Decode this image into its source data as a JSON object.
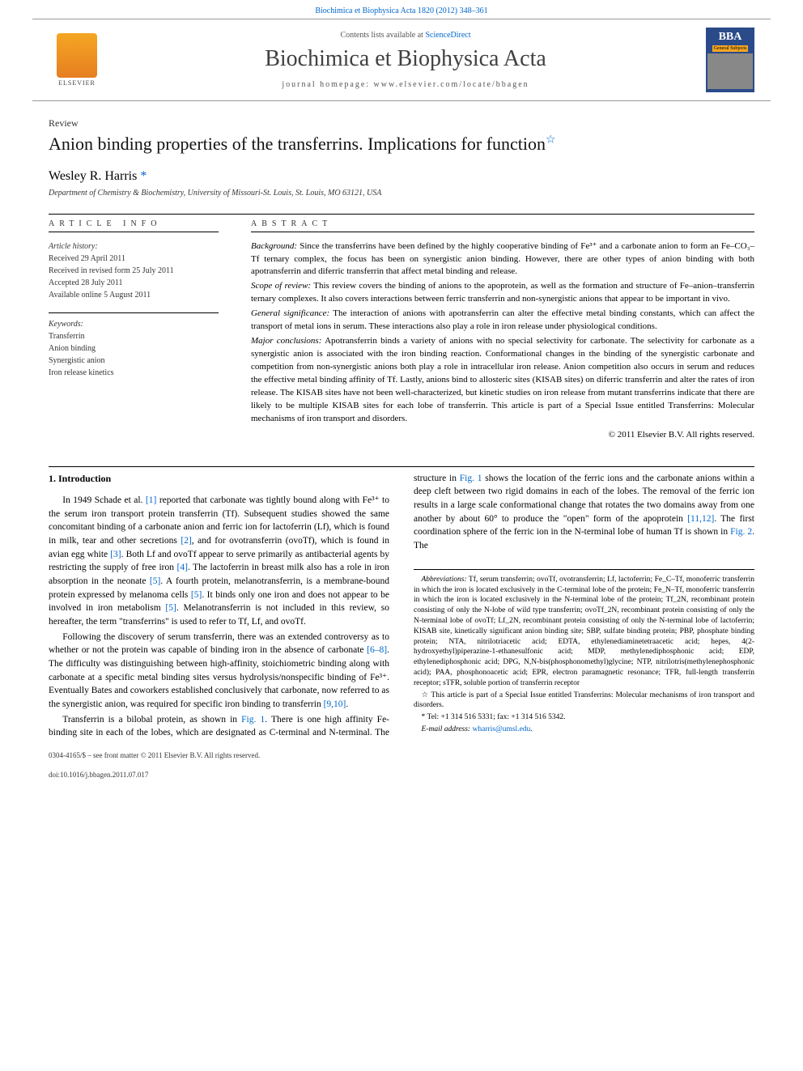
{
  "header": {
    "citation_prefix": "Biochimica et Biophysica Acta 1820 (2012) 348–361",
    "contents_label": "Contents lists available at",
    "contents_link": "ScienceDirect",
    "journal_name": "Biochimica et Biophysica Acta",
    "homepage_label": "journal homepage: www.elsevier.com/locate/bbagen",
    "elsevier_label": "ELSEVIER",
    "cover_title": "BBA",
    "cover_sub": "General Subjects"
  },
  "article": {
    "type": "Review",
    "title": "Anion binding properties of the transferrins. Implications for function",
    "title_star": "☆",
    "author": "Wesley R. Harris",
    "author_mark": "*",
    "affiliation": "Department of Chemistry & Biochemistry, University of Missouri-St. Louis, St. Louis, MO 63121, USA"
  },
  "info": {
    "header": "ARTICLE INFO",
    "history_title": "Article history:",
    "history_lines": [
      "Received 29 April 2011",
      "Received in revised form 25 July 2011",
      "Accepted 28 July 2011",
      "Available online 5 August 2011"
    ],
    "keywords_title": "Keywords:",
    "keywords": [
      "Transferrin",
      "Anion binding",
      "Synergistic anion",
      "Iron release kinetics"
    ]
  },
  "abstract": {
    "header": "ABSTRACT",
    "paragraphs": [
      {
        "label": "Background:",
        "text": "Since the transferrins have been defined by the highly cooperative binding of Fe³⁺ and a carbonate anion to form an Fe–CO₃–Tf ternary complex, the focus has been on synergistic anion binding. However, there are other types of anion binding with both apotransferrin and diferric transferrin that affect metal binding and release."
      },
      {
        "label": "Scope of review:",
        "text": "This review covers the binding of anions to the apoprotein, as well as the formation and structure of Fe–anion–transferrin ternary complexes. It also covers interactions between ferric transferrin and non-synergistic anions that appear to be important in vivo."
      },
      {
        "label": "General significance:",
        "text": "The interaction of anions with apotransferrin can alter the effective metal binding constants, which can affect the transport of metal ions in serum. These interactions also play a role in iron release under physiological conditions."
      },
      {
        "label": "Major conclusions:",
        "text": "Apotransferrin binds a variety of anions with no special selectivity for carbonate. The selectivity for carbonate as a synergistic anion is associated with the iron binding reaction. Conformational changes in the binding of the synergistic carbonate and competition from non-synergistic anions both play a role in intracellular iron release. Anion competition also occurs in serum and reduces the effective metal binding affinity of Tf. Lastly, anions bind to allosteric sites (KISAB sites) on diferric transferrin and alter the rates of iron release. The KISAB sites have not been well-characterized, but kinetic studies on iron release from mutant transferrins indicate that there are likely to be multiple KISAB sites for each lobe of transferrin. This article is part of a Special Issue entitled Transferrins: Molecular mechanisms of iron transport and disorders."
      }
    ],
    "copyright": "© 2011 Elsevier B.V. All rights reserved."
  },
  "body": {
    "section_number": "1.",
    "section_title": "Introduction",
    "p1_a": "In 1949 Schade et al. ",
    "p1_ref1": "[1]",
    "p1_b": " reported that carbonate was tightly bound along with Fe³⁺ to the serum iron transport protein transferrin (Tf). Subsequent studies showed the same concomitant binding of a carbonate anion and ferric ion for lactoferrin (Lf), which is found in milk, tear and other secretions ",
    "p1_ref2": "[2]",
    "p1_c": ", and for ovotransferrin (ovoTf), which is found in avian egg white ",
    "p1_ref3": "[3]",
    "p1_d": ". Both Lf and ovoTf appear to serve primarily as antibacterial agents by restricting the supply of free iron ",
    "p1_ref4": "[4]",
    "p1_e": ". The lactoferrin in breast milk also has a role in iron absorption in the neonate ",
    "p1_ref5": "[5]",
    "p1_f": ". A fourth protein, melanotransferrin, is a membrane-bound protein expressed by melanoma cells ",
    "p1_ref5b": "[5]",
    "p1_g": ". It binds only one iron and does not appear to be involved in iron metabolism ",
    "p1_ref5c": "[5]",
    "p1_h": ". Melanotransferrin is not included in this review, so hereafter, the term \"transferrins\" is used to refer to Tf, Lf, and ovoTf.",
    "p2_a": "Following the discovery of serum transferrin, there was an extended controversy as to whether or not the protein was capable of binding iron in the absence of carbonate ",
    "p2_ref68": "[6–8]",
    "p2_b": ". The difficulty was distinguishing between high-affinity, stoichiometric binding along with carbonate at a specific metal binding sites versus hydrolysis/nonspecific binding of Fe³⁺. Eventually Bates and coworkers established conclusively that carbonate, now referred to as the synergistic anion, was required for specific iron binding to transferrin ",
    "p2_ref910": "[9,10]",
    "p2_c": ".",
    "p3_a": "Transferrin is a bilobal protein, as shown in ",
    "p3_fig1": "Fig. 1",
    "p3_b": ". There is one high affinity Fe-binding site in each of the lobes, which are designated as C-terminal and N-terminal. The structure in ",
    "p3_fig1b": "Fig. 1",
    "p3_c": " shows the location of the ferric ions and the carbonate anions within a deep cleft between two rigid domains in each of the lobes. The removal of the ferric ion results in a large scale conformational change that rotates the two domains away from one another by about 60° to produce the \"open\" form of the apoprotein ",
    "p3_ref1112": "[11,12]",
    "p3_d": ". The first coordination sphere of the ferric ion in the N-terminal lobe of human Tf is shown in ",
    "p3_fig2": "Fig. 2",
    "p3_e": ". The"
  },
  "footnotes": {
    "abbrev_label": "Abbreviations:",
    "abbrev_text": " Tf, serum transferrin; ovoTf, ovotransferrin; Lf, lactoferrin; Fe_C–Tf, monoferric transferrin in which the iron is located exclusively in the C-terminal lobe of the protein; Fe_N–Tf, monoferric transferrin in which the iron is located exclusively in the N-terminal lobe of the protein; Tf_2N, recombinant protein consisting of only the N-lobe of wild type transferrin; ovoTf_2N, recombinant protein consisting of only the N-terminal lobe of ovoTf; Lf_2N, recombinant protein consisting of only the N-terminal lobe of lactoferrin; KISAB site, kinetically significant anion binding site; SBP, sulfate binding protein; PBP, phosphate binding protein; NTA, nitrilotriacetic acid; EDTA, ethylenediaminetetraacetic acid; hepes, 4(2-hydroxyethyl)piperazine-1-ethanesulfonic acid; MDP, methylenediphosphonic acid; EDP, ethylenediphosphonic acid; DPG, N,N-bis(phosphonomethyl)glycine; NTP, nitrilotris(methylenephosphonic acid); PAA, phosphonoacetic acid; EPR, electron paramagnetic resonance; TFR, full-length transferrin receptor; sTFR, soluble portion of transferrin receptor",
    "star_note": "☆ This article is part of a Special Issue entitled Transferrins: Molecular mechanisms of iron transport and disorders.",
    "corr_label": "* Tel: +1 314 516 5331; fax: +1 314 516 5342.",
    "email_label": "E-mail address:",
    "email": "wharris@umsl.edu"
  },
  "footer": {
    "line1": "0304-4165/$ – see front matter © 2011 Elsevier B.V. All rights reserved.",
    "line2": "doi:10.1016/j.bbagen.2011.07.017"
  },
  "colors": {
    "link": "#0066cc",
    "text": "#000000",
    "muted": "#555555",
    "elsevier_orange": "#e67e22",
    "cover_blue": "#2a4a8a"
  }
}
